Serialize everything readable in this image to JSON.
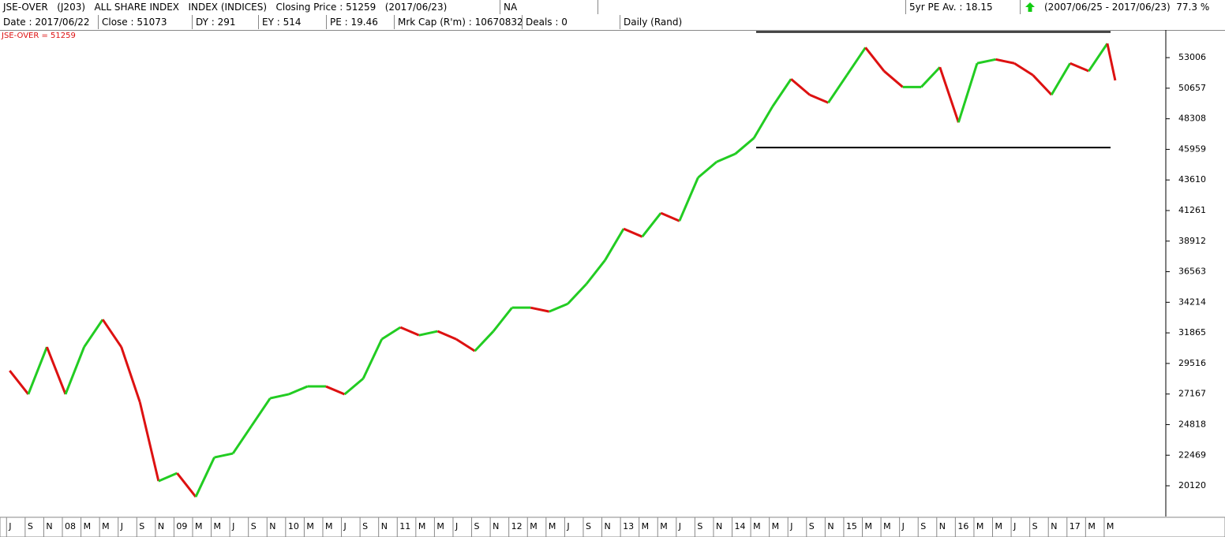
{
  "header": {
    "row1": [
      "JSE-OVER   (J203)   ALL SHARE INDEX   INDEX (INDICES)   Closing Price : 51259   (2017/06/23)",
      "NA",
      "5yr PE Av. : 18.15",
      "(2007/06/25 - 2017/06/23)  77.3 %"
    ],
    "row2": [
      "Date : 2017/06/22",
      "Close : 51073",
      "DY : 291",
      "EY : 514",
      "PE : 19.46",
      "Mrk Cap (R'm) : 10670832",
      "Deals : 0",
      "Daily (Rand)"
    ]
  },
  "chart_data": {
    "type": "line",
    "legend": "JSE-OVER = 51259",
    "categories": [
      "J",
      "S",
      "N",
      "08",
      "M",
      "M",
      "J",
      "S",
      "N",
      "09",
      "M",
      "M",
      "J",
      "S",
      "N",
      "10",
      "M",
      "M",
      "J",
      "S",
      "N",
      "11",
      "M",
      "M",
      "J",
      "S",
      "N",
      "12",
      "M",
      "M",
      "J",
      "S",
      "N",
      "13",
      "M",
      "M",
      "J",
      "S",
      "N",
      "14",
      "M",
      "M",
      "J",
      "S",
      "N",
      "15",
      "M",
      "M",
      "J",
      "S",
      "N",
      "16",
      "M",
      "M",
      "J",
      "S",
      "N",
      "17",
      "M",
      "M",
      null
    ],
    "values": [
      28960,
      27150,
      30780,
      27150,
      30780,
      32890,
      30780,
      26540,
      20480,
      21090,
      19270,
      22300,
      22600,
      24720,
      26840,
      27150,
      27750,
      27750,
      27150,
      28350,
      31380,
      32290,
      31680,
      31990,
      31380,
      30470,
      31990,
      33800,
      33800,
      33500,
      34100,
      35620,
      37440,
      39860,
      39250,
      41070,
      40460,
      43790,
      45000,
      45610,
      46820,
      49240,
      51360,
      50150,
      49540,
      51660,
      53780,
      51970,
      50750,
      50750,
      52270,
      48030,
      52570,
      52870,
      52570,
      51660,
      50150,
      52570,
      51970,
      54090,
      51259
    ],
    "up_color": "#22cc22",
    "down_color": "#dd1111",
    "reference_lines": [
      54980,
      46100
    ],
    "ylim": [
      17760,
      55130
    ],
    "yticks": [
      20120,
      22469,
      24818,
      27167,
      29516,
      31865,
      34214,
      36563,
      38912,
      41261,
      43610,
      45959,
      48308,
      50657,
      53006
    ]
  }
}
